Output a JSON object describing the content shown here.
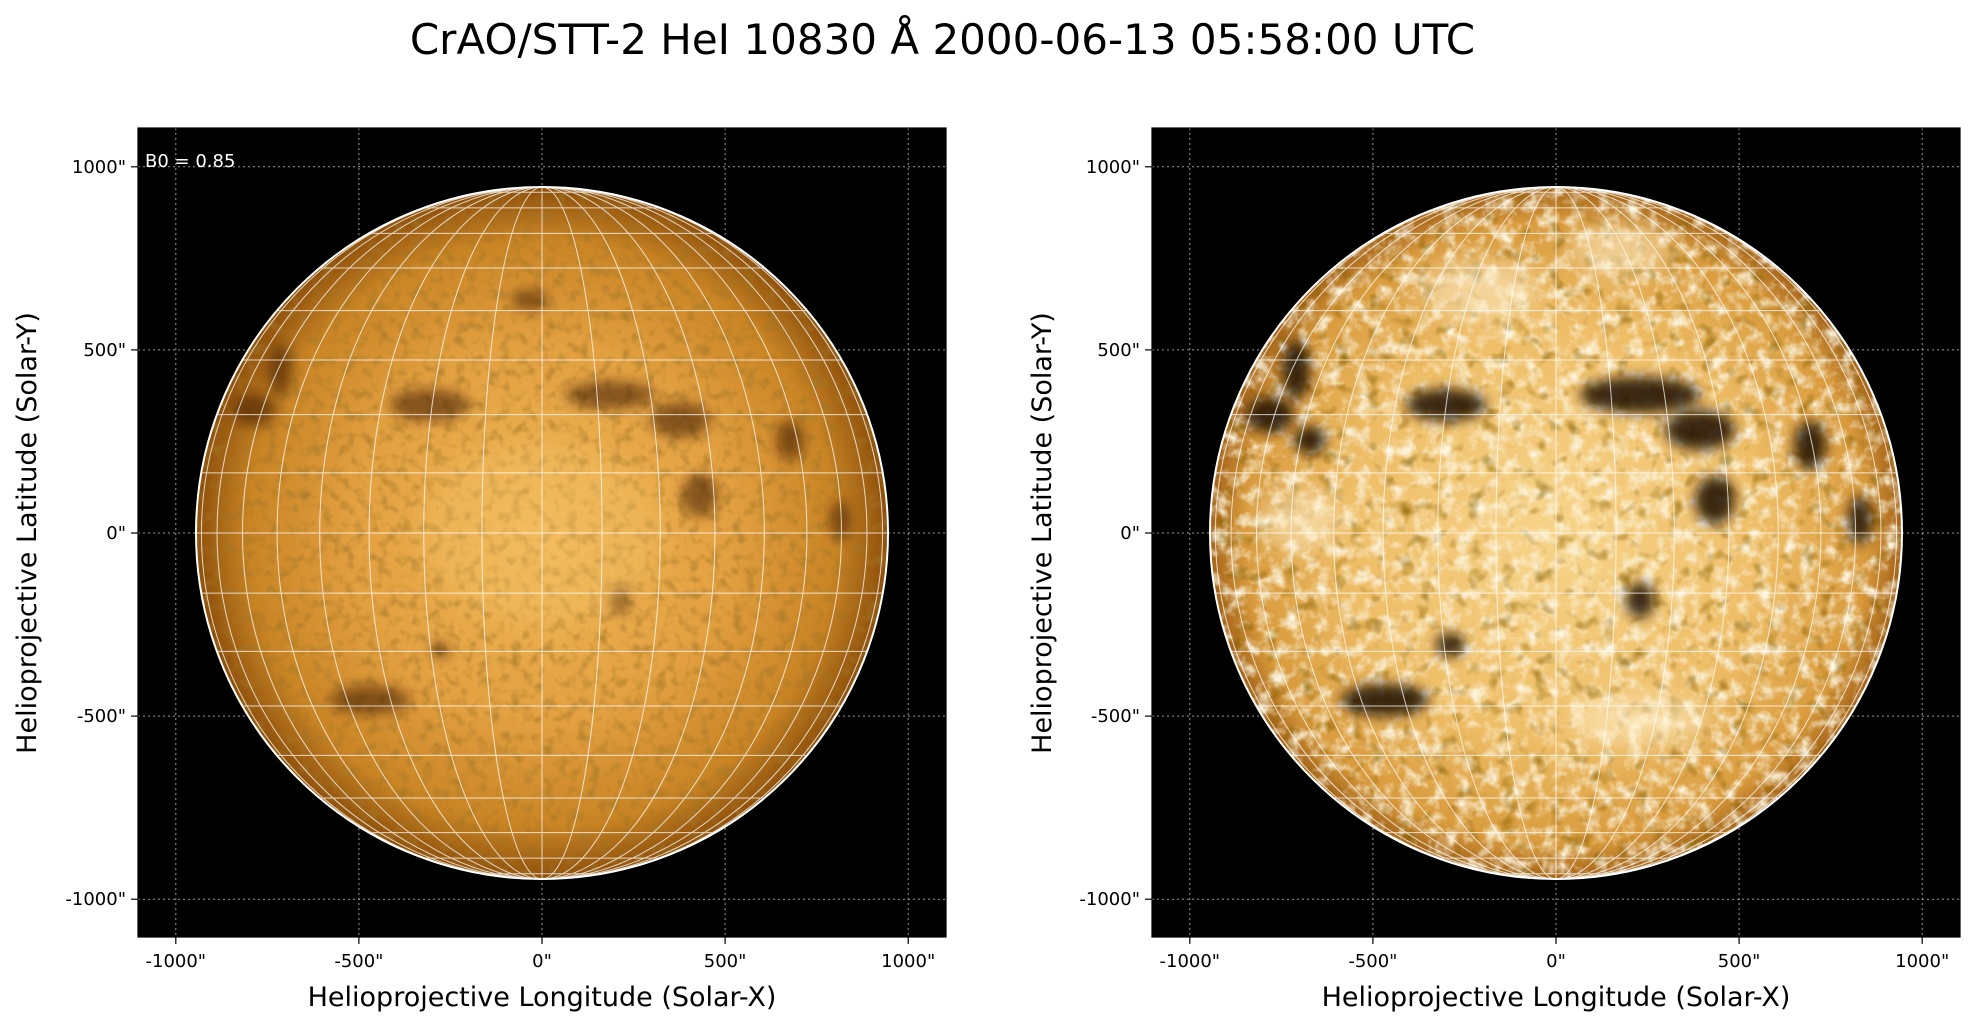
{
  "figure": {
    "title": "CrAO/STT-2 HeI 10830 Å 2000-06-13 05:58:00 UTC"
  },
  "panels": [
    {
      "id": "left",
      "annotation": "B0 = 0.85",
      "xlabel": "Helioprojective Longitude (Solar-X)",
      "ylabel": "Helioprojective Latitude (Solar-Y)",
      "x_ticks": [
        "-1000\"",
        "-500\"",
        "0\"",
        "500\"",
        "1000\""
      ],
      "y_ticks": [
        "1000\"",
        "500\"",
        "0\"",
        "-500\"",
        "-1000\""
      ],
      "contrast": "standard"
    },
    {
      "id": "right",
      "annotation": "",
      "xlabel": "Helioprojective Longitude (Solar-X)",
      "ylabel": "Helioprojective Latitude (Solar-Y)",
      "x_ticks": [
        "-1000\"",
        "-500\"",
        "0\"",
        "500\"",
        "1000\""
      ],
      "y_ticks": [
        "1000\"",
        "500\"",
        "0\"",
        "-500\"",
        "-1000\""
      ],
      "contrast": "enhanced"
    }
  ],
  "colors": {
    "background": "#000000",
    "disk_center": "#f1b858",
    "disk_limb": "#b96c10",
    "disk_enhanced_center": "#f7d48a",
    "grid": "#ffffff"
  }
}
